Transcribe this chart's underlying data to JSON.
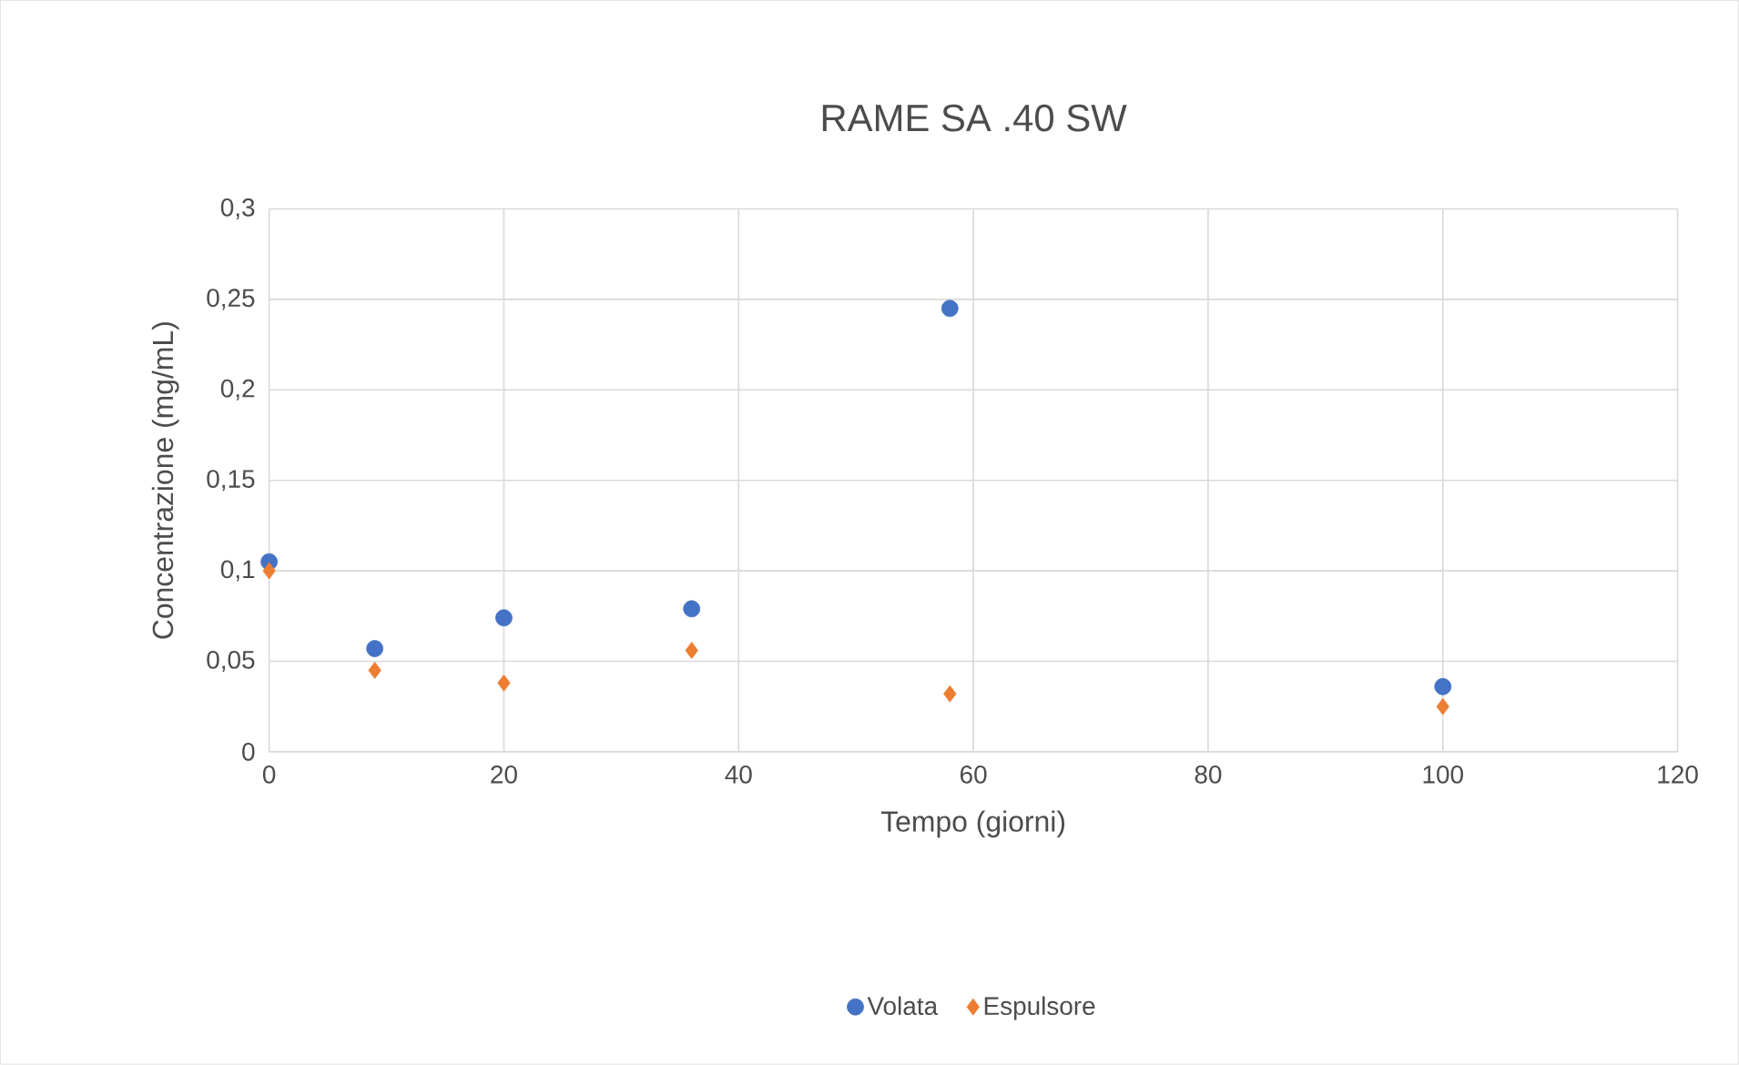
{
  "chart_data": {
    "type": "scatter",
    "title": "RAME SA .40 SW",
    "xlabel": "Tempo (giorni)",
    "ylabel": "Concentrazione (mg/mL)",
    "x": [
      0,
      9,
      20,
      36,
      58,
      100
    ],
    "series": [
      {
        "name": "Volata",
        "color": "#4472c4",
        "marker": "circle",
        "values": [
          0.105,
          0.057,
          0.074,
          0.079,
          0.245,
          0.036
        ]
      },
      {
        "name": "Espulsore",
        "color": "#ed7d31",
        "marker": "diamond",
        "values": [
          0.1,
          0.045,
          0.038,
          0.056,
          0.032,
          0.025
        ]
      }
    ],
    "xlim": [
      0,
      120
    ],
    "xticks": [
      0,
      20,
      40,
      60,
      80,
      100,
      120
    ],
    "ylim": [
      0,
      0.3
    ],
    "yticks": [
      0,
      {
        "value": 0.05,
        "label": "0,05"
      },
      {
        "value": 0.1,
        "label": "0,1"
      },
      {
        "value": 0.15,
        "label": "0,15"
      },
      {
        "value": 0.2,
        "label": "0,2"
      },
      {
        "value": 0.25,
        "label": "0,25"
      },
      {
        "value": 0.3,
        "label": "0,3"
      }
    ],
    "grid": true,
    "legend": "bottom"
  }
}
